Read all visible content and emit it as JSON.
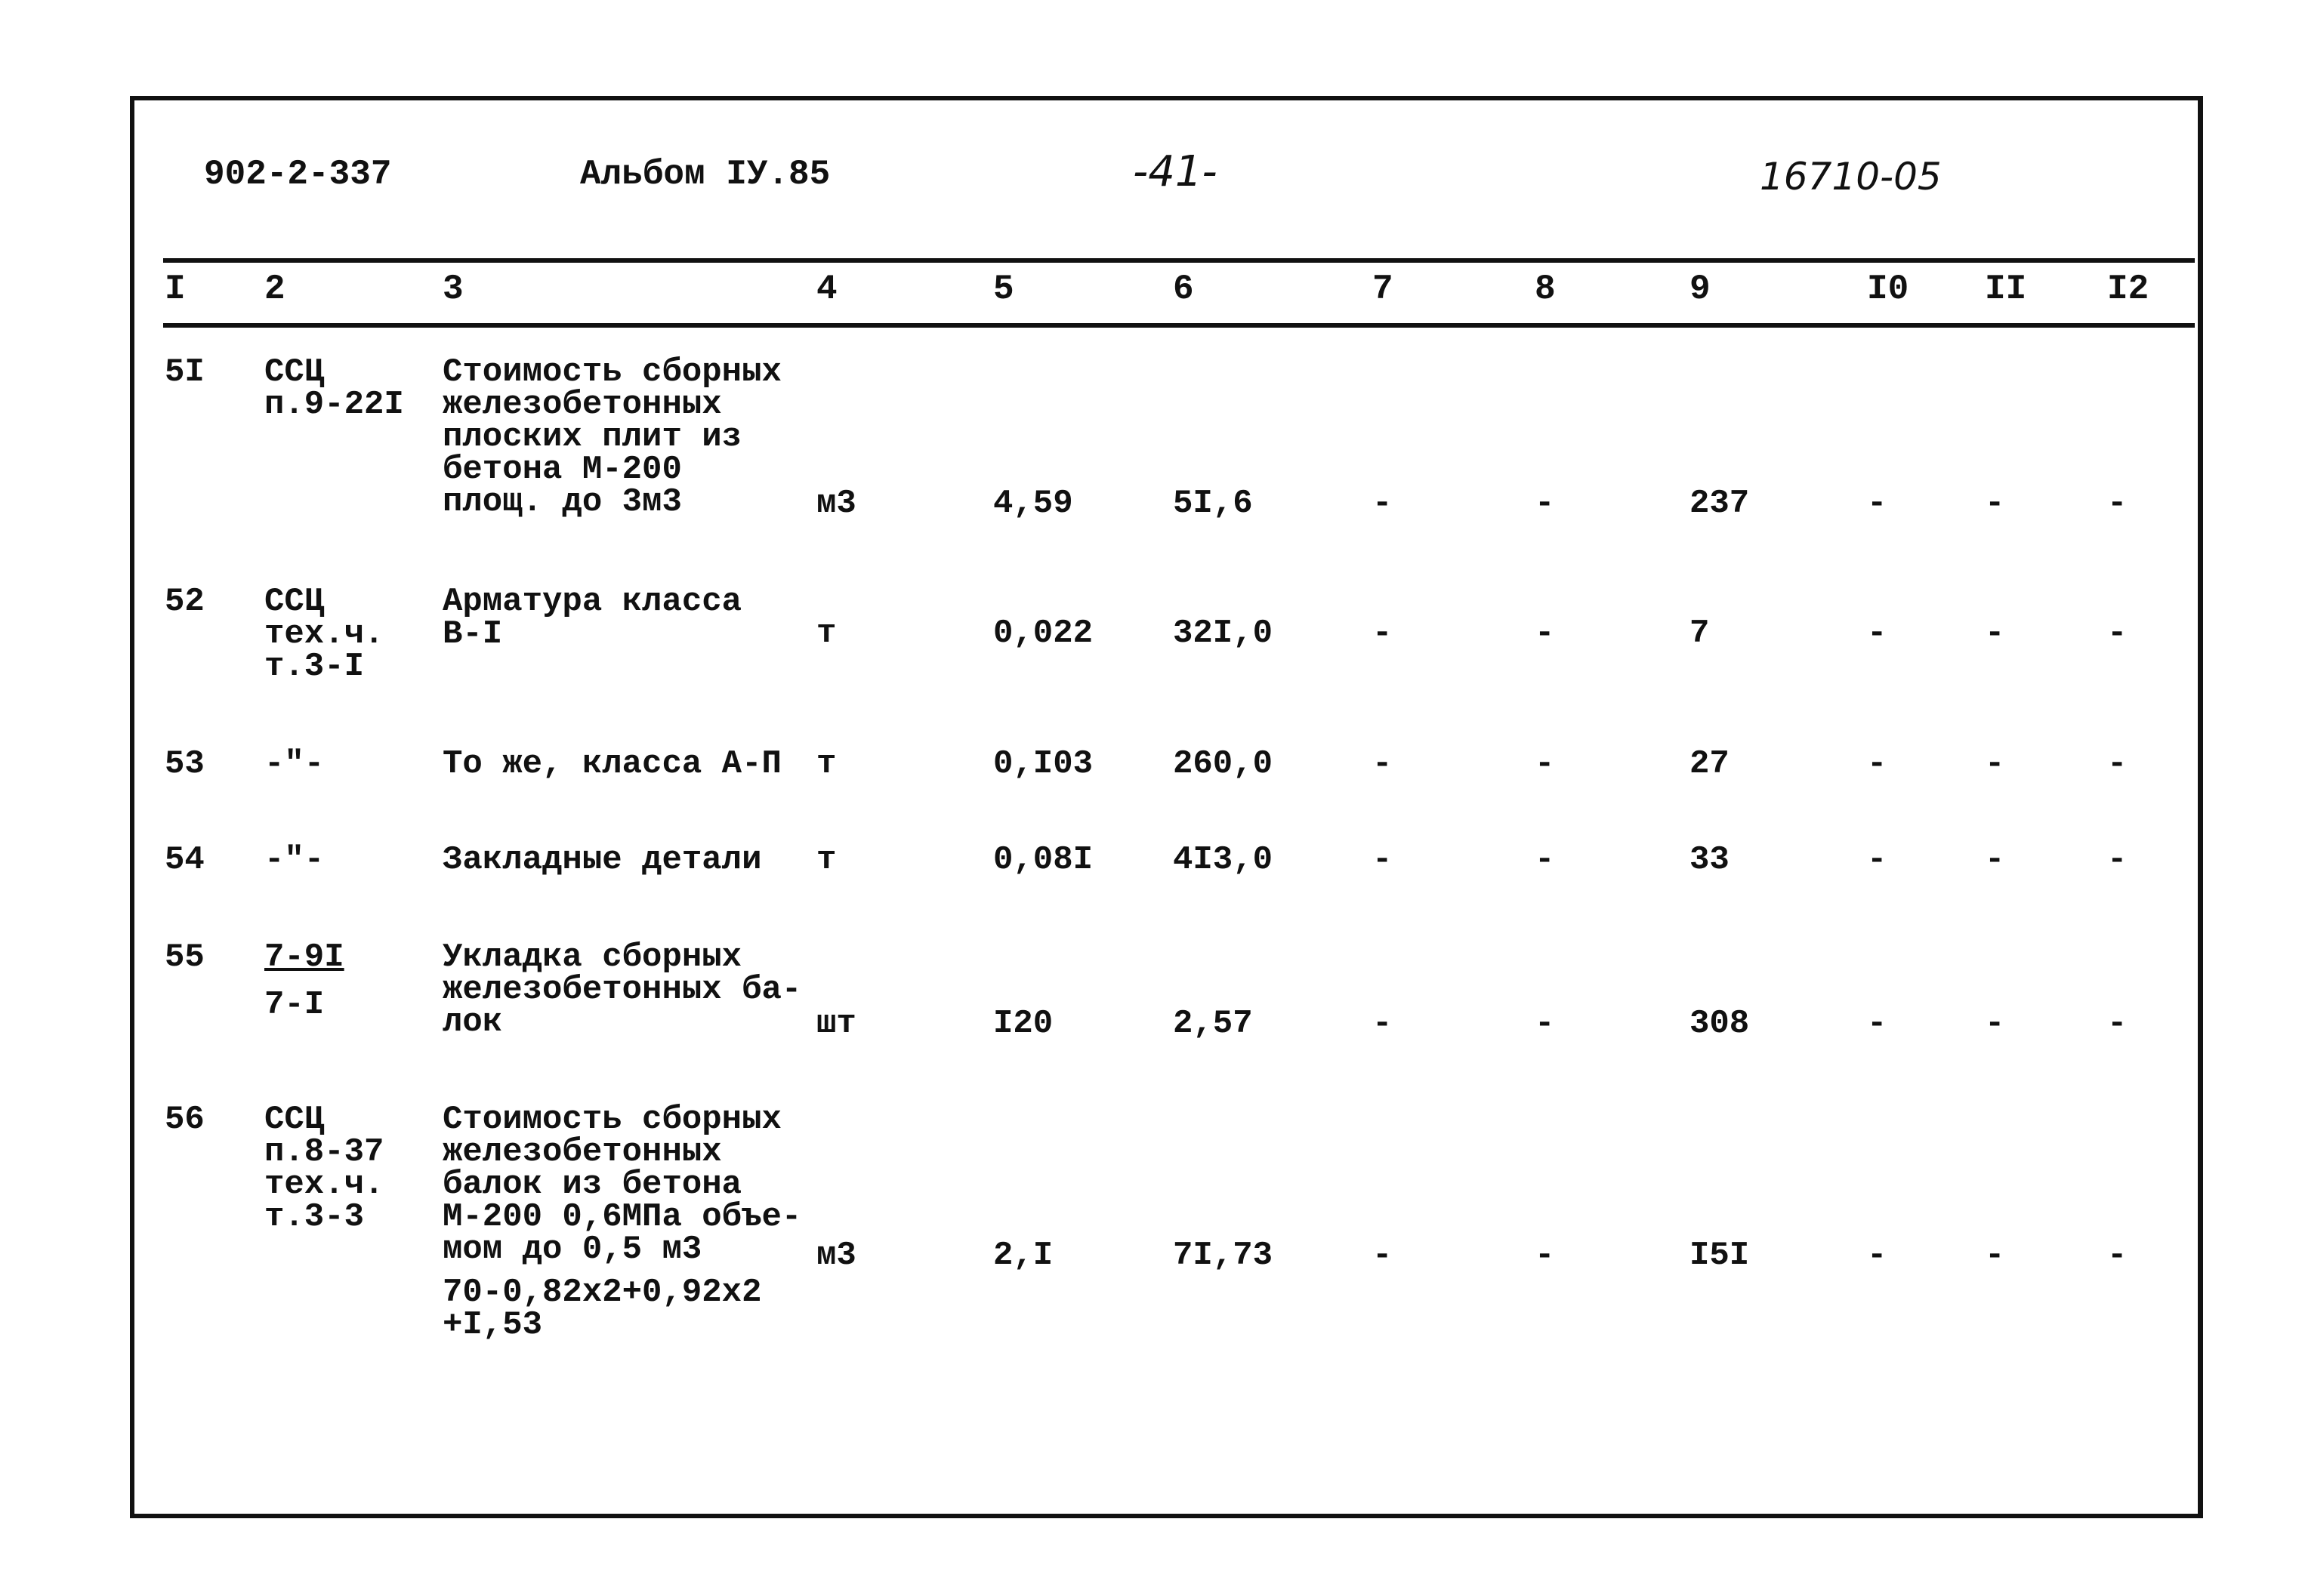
{
  "header": {
    "project_code": "902-2-337",
    "album": "Альбом IУ.85",
    "page": "-41-",
    "doc_number": "16710-05"
  },
  "columns": [
    "I",
    "2",
    "3",
    "4",
    "5",
    "6",
    "7",
    "8",
    "9",
    "I0",
    "II",
    "I2"
  ],
  "rows": [
    {
      "n": "5I",
      "ref": [
        "ССЦ",
        "п.9-22I"
      ],
      "desc": [
        "Стоимость сборных",
        "железобетонных",
        "плоских плит из",
        "бетона М-200",
        "площ. до 3м3"
      ],
      "unit": "м3",
      "c5": "4,59",
      "c6": "5I,6",
      "c7": "-",
      "c8": "-",
      "c9": "237",
      "c10": "-",
      "c11": "-",
      "c12": "-"
    },
    {
      "n": "52",
      "ref": [
        "ССЦ",
        "тех.ч.",
        "т.3-I"
      ],
      "desc": [
        "Арматура класса",
        "В-I"
      ],
      "unit": "т",
      "c5": "0,022",
      "c6": "32I,0",
      "c7": "-",
      "c8": "-",
      "c9": "7",
      "c10": "-",
      "c11": "-",
      "c12": "-"
    },
    {
      "n": "53",
      "ref": [
        "-\"-"
      ],
      "desc": [
        "То же, класса А-П"
      ],
      "unit": "т",
      "c5": "0,I03",
      "c6": "260,0",
      "c7": "-",
      "c8": "-",
      "c9": "27",
      "c10": "-",
      "c11": "-",
      "c12": "-"
    },
    {
      "n": "54",
      "ref": [
        "-\"-"
      ],
      "desc": [
        "Закладные детали"
      ],
      "unit": "т",
      "c5": "0,08I",
      "c6": "4I3,0",
      "c7": "-",
      "c8": "-",
      "c9": "33",
      "c10": "-",
      "c11": "-",
      "c12": "-"
    },
    {
      "n": "55",
      "ref": [
        "7-9I",
        "7-I"
      ],
      "desc": [
        "Укладка сборных",
        "железобетонных ба-",
        "лок"
      ],
      "unit": "шт",
      "c5": "I20",
      "c6": "2,57",
      "c7": "-",
      "c8": "-",
      "c9": "308",
      "c10": "-",
      "c11": "-",
      "c12": "-"
    },
    {
      "n": "56",
      "ref": [
        "ССЦ",
        "п.8-37",
        "тех.ч.",
        "т.3-3"
      ],
      "desc": [
        "Стоимость сборных",
        "железобетонных",
        "балок из бетона",
        "М-200 0,6МПа объе-",
        "мом до 0,5 м3"
      ],
      "note": [
        "70-0,82х2+0,92х2",
        "+I,53"
      ],
      "unit": "м3",
      "c5": "2,I",
      "c6": "7I,73",
      "c7": "-",
      "c8": "-",
      "c9": "I5I",
      "c10": "-",
      "c11": "-",
      "c12": "-"
    }
  ]
}
